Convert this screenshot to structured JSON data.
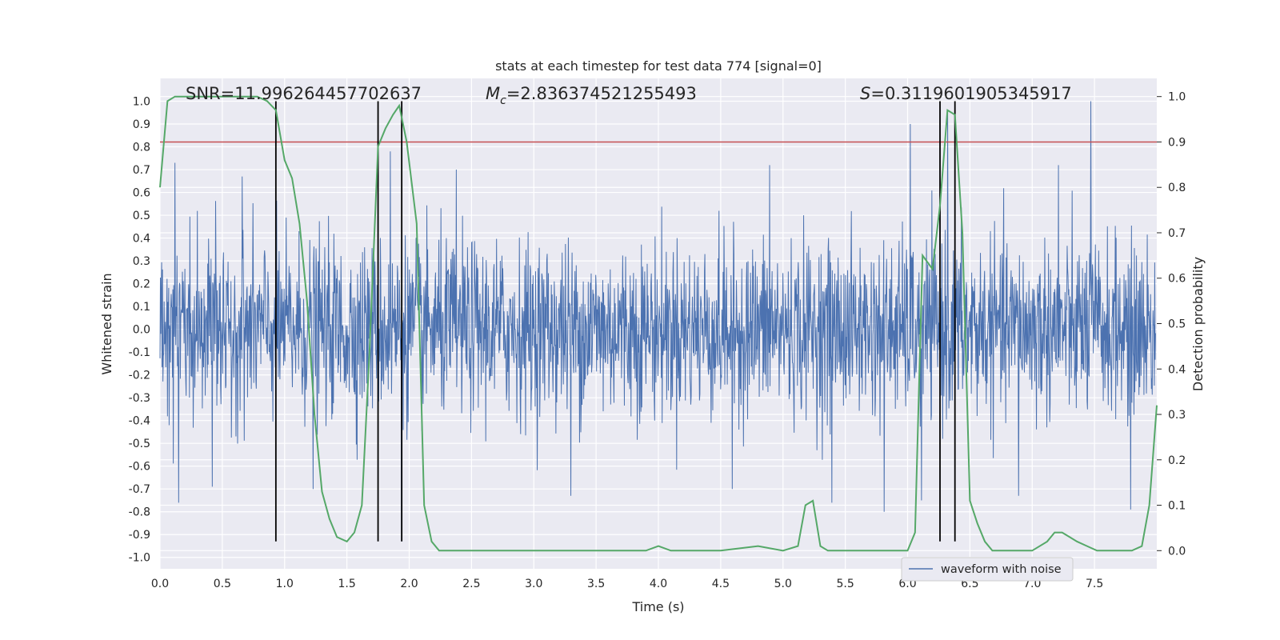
{
  "chart_data": {
    "type": "line",
    "title": "stats at each timestep for test data 774 [signal=0]",
    "xlabel": "Time (s)",
    "ylabel_left": "Whitened strain",
    "ylabel_right": "Detection probability",
    "xlim": [
      0.0,
      8.0
    ],
    "ylim_left": [
      -1.05,
      1.1
    ],
    "ylim_right": [
      -0.04,
      1.04
    ],
    "x_ticks": [
      "0.0",
      "0.5",
      "1.0",
      "1.5",
      "2.0",
      "2.5",
      "3.0",
      "3.5",
      "4.0",
      "4.5",
      "5.0",
      "5.5",
      "6.0",
      "6.5",
      "7.0",
      "7.5"
    ],
    "x_tick_values": [
      0.0,
      0.5,
      1.0,
      1.5,
      2.0,
      2.5,
      3.0,
      3.5,
      4.0,
      4.5,
      5.0,
      5.5,
      6.0,
      6.5,
      7.0,
      7.5
    ],
    "y_ticks_left": [
      "1.0",
      "0.9",
      "0.8",
      "0.7",
      "0.6",
      "0.5",
      "0.4",
      "0.3",
      "0.2",
      "0.1",
      "0.0",
      "-0.1",
      "-0.2",
      "-0.3",
      "-0.4",
      "-0.5",
      "-0.6",
      "-0.7",
      "-0.8",
      "-0.9",
      "-1.0"
    ],
    "y_tick_values_left": [
      1.0,
      0.9,
      0.8,
      0.7,
      0.6,
      0.5,
      0.4,
      0.3,
      0.2,
      0.1,
      0.0,
      -0.1,
      -0.2,
      -0.3,
      -0.4,
      -0.5,
      -0.6,
      -0.7,
      -0.8,
      -0.9,
      -1.0
    ],
    "y_ticks_right": [
      "1.0",
      "0.9",
      "0.8",
      "0.7",
      "0.6",
      "0.5",
      "0.4",
      "0.3",
      "0.2",
      "0.1",
      "0.0"
    ],
    "y_tick_values_right": [
      1.0,
      0.9,
      0.8,
      0.7,
      0.6,
      0.5,
      0.4,
      0.3,
      0.2,
      0.1,
      0.0
    ],
    "grid": true,
    "annotations": {
      "snr": "SNR=11.996264457702637",
      "mc_symbol": "M",
      "mc_subscript": "c",
      "mc_value": "=2.836374521255493",
      "s_symbol": "S",
      "s_value": "=0.3119601905345917"
    },
    "threshold": {
      "value": 0.9,
      "axis": "right",
      "color": "#c44e52"
    },
    "vertical_markers": [
      0.93,
      1.75,
      1.94,
      6.26,
      6.38
    ],
    "vertical_marker_range": [
      -0.93,
      1.0
    ],
    "noise_waveform": {
      "name": "waveform with noise",
      "color": "#4c72b0",
      "envelope_typical": [
        -0.4,
        0.4
      ],
      "peaks": [
        {
          "t": 0.12,
          "v": 0.73
        },
        {
          "t": 0.15,
          "v": -0.76
        },
        {
          "t": 0.42,
          "v": -0.69
        },
        {
          "t": 0.66,
          "v": 0.67
        },
        {
          "t": 1.23,
          "v": -0.7
        },
        {
          "t": 1.85,
          "v": 0.78
        },
        {
          "t": 1.94,
          "v": -0.93
        },
        {
          "t": 2.38,
          "v": 0.7
        },
        {
          "t": 3.3,
          "v": -0.73
        },
        {
          "t": 4.6,
          "v": -0.7
        },
        {
          "t": 4.9,
          "v": 0.72
        },
        {
          "t": 5.4,
          "v": -0.76
        },
        {
          "t": 5.82,
          "v": -0.8
        },
        {
          "t": 6.03,
          "v": 0.9
        },
        {
          "t": 6.12,
          "v": -0.75
        },
        {
          "t": 6.33,
          "v": 0.95
        },
        {
          "t": 6.9,
          "v": -0.73
        },
        {
          "t": 7.22,
          "v": 0.72
        },
        {
          "t": 7.48,
          "v": 1.0
        },
        {
          "t": 7.8,
          "v": -0.79
        }
      ]
    },
    "detection_probability": {
      "color": "#55a868",
      "x": [
        0.0,
        0.06,
        0.12,
        0.2,
        0.3,
        0.4,
        0.5,
        0.6,
        0.7,
        0.78,
        0.86,
        0.93,
        1.0,
        1.06,
        1.12,
        1.18,
        1.24,
        1.3,
        1.36,
        1.42,
        1.5,
        1.56,
        1.62,
        1.68,
        1.75,
        1.81,
        1.87,
        1.92,
        1.98,
        2.06,
        2.12,
        2.18,
        2.24,
        2.3,
        2.5,
        3.0,
        3.5,
        3.9,
        4.0,
        4.1,
        4.5,
        4.8,
        5.0,
        5.12,
        5.18,
        5.24,
        5.3,
        5.36,
        5.45,
        5.55,
        6.0,
        6.06,
        6.12,
        6.2,
        6.26,
        6.32,
        6.38,
        6.44,
        6.5,
        6.56,
        6.62,
        6.68,
        6.8,
        7.0,
        7.12,
        7.18,
        7.24,
        7.3,
        7.36,
        7.44,
        7.52,
        7.6,
        7.7,
        7.8,
        7.88,
        7.94,
        8.0
      ],
      "y": [
        0.8,
        0.99,
        1.0,
        1.0,
        1.0,
        1.0,
        1.0,
        1.0,
        1.0,
        1.0,
        0.99,
        0.97,
        0.86,
        0.82,
        0.72,
        0.55,
        0.3,
        0.13,
        0.07,
        0.03,
        0.02,
        0.04,
        0.1,
        0.43,
        0.89,
        0.93,
        0.96,
        0.98,
        0.9,
        0.72,
        0.1,
        0.02,
        0.0,
        0.0,
        0.0,
        0.0,
        0.0,
        0.0,
        0.01,
        0.0,
        0.0,
        0.01,
        0.0,
        0.01,
        0.1,
        0.11,
        0.01,
        0.0,
        0.0,
        0.0,
        0.0,
        0.04,
        0.65,
        0.62,
        0.76,
        0.97,
        0.96,
        0.7,
        0.11,
        0.06,
        0.02,
        0.0,
        0.0,
        0.0,
        0.02,
        0.04,
        0.04,
        0.03,
        0.02,
        0.01,
        0.0,
        0.0,
        0.0,
        0.0,
        0.01,
        0.1,
        0.32
      ]
    }
  },
  "colors": {
    "plot_bg": "#eaeaf2",
    "grid": "#ffffff",
    "text": "#262626",
    "marker": "#000000"
  }
}
